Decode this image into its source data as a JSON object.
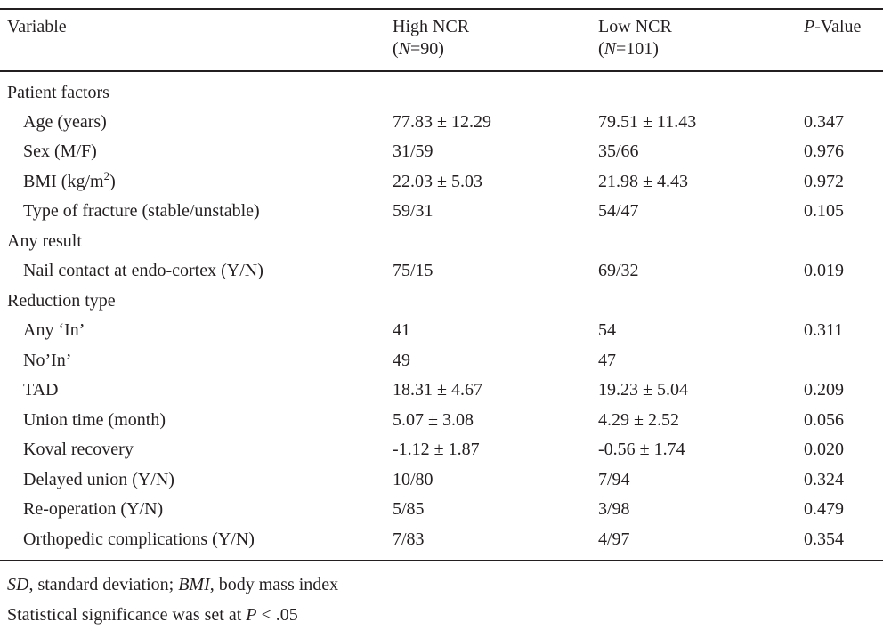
{
  "header": {
    "variable": "Variable",
    "high_ncr": "High NCR",
    "high_n_label": "N",
    "high_n_value": "=90",
    "low_ncr": "Low NCR",
    "low_n_label": "N",
    "low_n_value": "=101",
    "p_value_italic": "P",
    "p_value_rest": "-Value"
  },
  "rows": [
    {
      "type": "section",
      "label": "Patient factors"
    },
    {
      "type": "data",
      "label": "Age (years)",
      "high": "77.83 ± 12.29",
      "low": "79.51 ± 11.43",
      "p": "0.347"
    },
    {
      "type": "data",
      "label": "Sex (M/F)",
      "high": "31/59",
      "low": "35/66",
      "p": "0.976"
    },
    {
      "type": "data",
      "label_pre": "BMI (kg/m",
      "label_sup": "2",
      "label_post": ")",
      "high": "22.03 ± 5.03",
      "low": "21.98 ± 4.43",
      "p": "0.972"
    },
    {
      "type": "data",
      "label": "Type of fracture (stable/unstable)",
      "high": "59/31",
      "low": "54/47",
      "p": "0.105"
    },
    {
      "type": "section",
      "label": "Any result"
    },
    {
      "type": "data",
      "label": "Nail contact at endo-cortex (Y/N)",
      "high": "75/15",
      "low": "69/32",
      "p": "0.019"
    },
    {
      "type": "section",
      "label": "Reduction type"
    },
    {
      "type": "data",
      "label": "Any ‘In’",
      "high": "41",
      "low": "54",
      "p": "0.311"
    },
    {
      "type": "data",
      "label": "No’In’",
      "high": "49",
      "low": "47",
      "p": ""
    },
    {
      "type": "data",
      "label": "TAD",
      "high": "18.31 ± 4.67",
      "low": "19.23 ± 5.04",
      "p": "0.209"
    },
    {
      "type": "data",
      "label": "Union time (month)",
      "high": "5.07 ± 3.08",
      "low": "4.29 ± 2.52",
      "p": "0.056"
    },
    {
      "type": "data",
      "label": "Koval recovery",
      "high": "-1.12 ± 1.87",
      "low": "-0.56 ± 1.74",
      "p": "0.020"
    },
    {
      "type": "data",
      "label": "Delayed union (Y/N)",
      "high": "10/80",
      "low": "7/94",
      "p": "0.324"
    },
    {
      "type": "data",
      "label": "Re-operation (Y/N)",
      "high": "5/85",
      "low": "3/98",
      "p": "0.479"
    },
    {
      "type": "data",
      "label": "Orthopedic complications (Y/N)",
      "high": "7/83",
      "low": "4/97",
      "p": "0.354"
    }
  ],
  "footnotes": {
    "sd_abbr": "SD",
    "sd_text": ", standard deviation; ",
    "bmi_abbr": "BMI",
    "bmi_text": ", body mass index",
    "sig_text": "Statistical significance was set at ",
    "sig_p": "P",
    "sig_value": " < .05"
  }
}
